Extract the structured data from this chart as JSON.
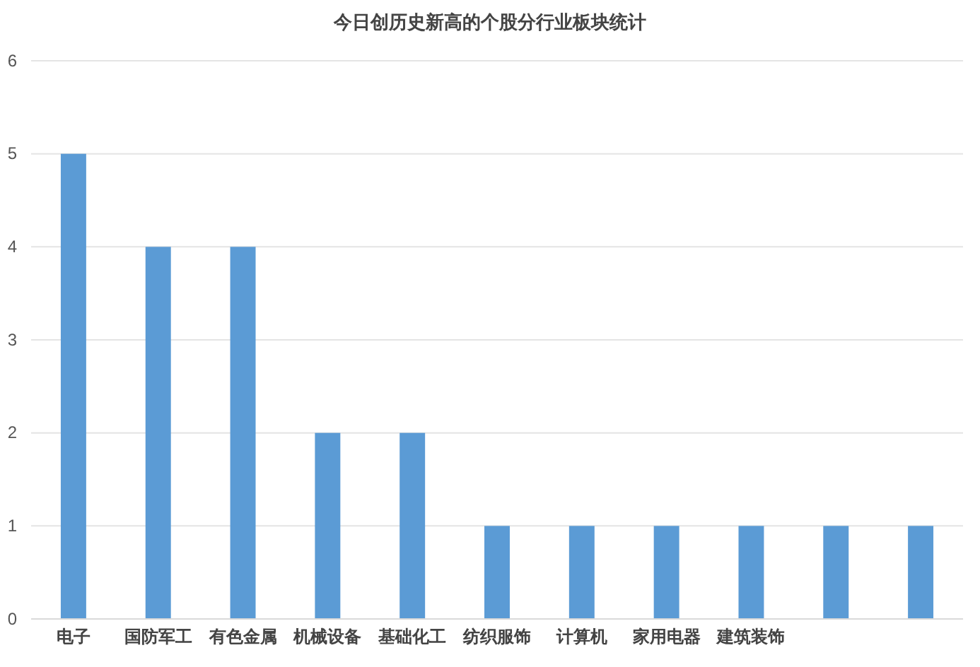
{
  "chart_data": {
    "type": "bar",
    "title": "今日创历史新高的个股分行业板块统计",
    "categories": [
      "电子",
      "国防军工",
      "有色金属",
      "机械设备",
      "基础化工",
      "纺织服饰",
      "计算机",
      "家用电器",
      "建筑装饰",
      null,
      null
    ],
    "values": [
      5,
      4,
      4,
      2,
      2,
      1,
      1,
      1,
      1,
      1,
      1
    ],
    "color": "#5b9bd5",
    "ylim": [
      0,
      6
    ],
    "yticks": [
      0,
      1,
      2,
      3,
      4,
      5,
      6
    ],
    "grid": "y"
  }
}
